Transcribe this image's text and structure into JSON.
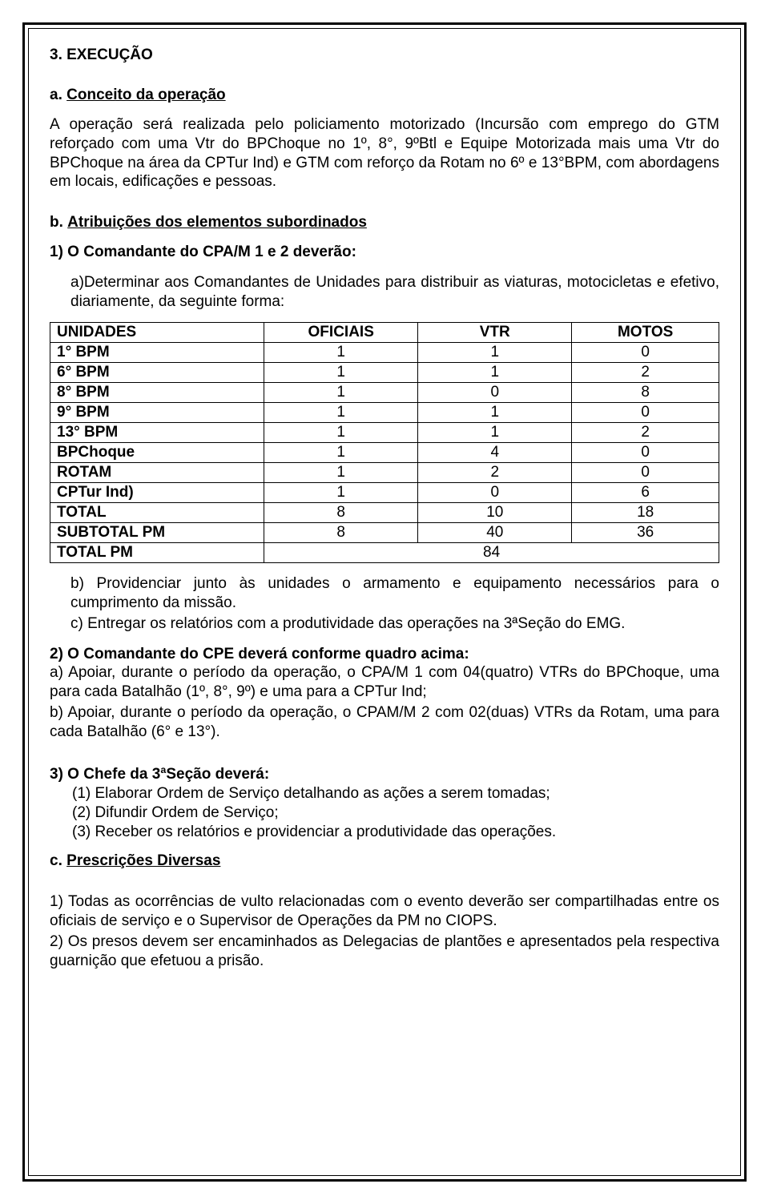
{
  "colors": {
    "text": "#000000",
    "background": "#ffffff",
    "border": "#000000"
  },
  "typography": {
    "body_fontsize_pt": 14,
    "line_height": 1.25,
    "font_family": "Arial"
  },
  "heading": {
    "number": "3. EXECUÇÃO"
  },
  "a": {
    "prefix": "a.",
    "title": "Conceito da operação",
    "body": "A operação será realizada pelo policiamento motorizado (Incursão com emprego do GTM reforçado com uma Vtr do BPChoque no 1º, 8°, 9ºBtl e Equipe Motorizada mais uma Vtr do BPChoque na área da CPTur Ind) e GTM com reforço da Rotam no 6º e 13°BPM, com abordagens em locais, edificações e pessoas."
  },
  "b": {
    "prefix": "b.",
    "title": "Atribuições dos elementos subordinados",
    "item1_title": "1) O Comandante do CPA/M 1 e 2 deverão:",
    "item1_a": "a)Determinar aos Comandantes de Unidades para distribuir as viaturas, motocicletas e efetivo, diariamente, da seguinte forma:",
    "table": {
      "type": "table",
      "columns": [
        "UNIDADES",
        "OFICIAIS",
        "VTR",
        "MOTOS"
      ],
      "rows": [
        [
          "1° BPM",
          "1",
          "1",
          "0"
        ],
        [
          "6° BPM",
          "1",
          "1",
          "2"
        ],
        [
          "8° BPM",
          "1",
          "0",
          "8"
        ],
        [
          "9° BPM",
          "1",
          "1",
          "0"
        ],
        [
          "13° BPM",
          "1",
          "1",
          "2"
        ],
        [
          "BPChoque",
          "1",
          "4",
          "0"
        ],
        [
          "ROTAM",
          "1",
          "2",
          "0"
        ],
        [
          "CPTur Ind)",
          "1",
          "0",
          "6"
        ],
        [
          "TOTAL",
          "8",
          "10",
          "18"
        ],
        [
          "SUBTOTAL PM",
          "8",
          "40",
          "36"
        ]
      ],
      "total_row": {
        "label": "TOTAL PM",
        "value": "84"
      },
      "border_color": "#000000",
      "cell_fontsize": 19
    },
    "item1_b": "b) Providenciar junto às unidades o armamento e equipamento necessários para o cumprimento da missão.",
    "item1_c": "c) Entregar os relatórios com a produtividade das operações na 3ªSeção do EMG.",
    "item2_title": "2) O Comandante do CPE deverá conforme quadro acima:",
    "item2_a": "a) Apoiar, durante o período da operação, o CPA/M 1 com 04(quatro) VTRs do BPChoque, uma para cada Batalhão (1º, 8°, 9º) e uma para a CPTur Ind;",
    "item2_b": "b) Apoiar, durante o período da operação, o CPAM/M 2 com 02(duas) VTRs da Rotam, uma para cada Batalhão (6° e 13°).",
    "item3_title": "3) O Chefe da 3ªSeção deverá:",
    "item3_1": "(1) Elaborar Ordem de Serviço detalhando as ações a serem tomadas;",
    "item3_2": "(2) Difundir Ordem de Serviço;",
    "item3_3": "(3) Receber os relatórios e providenciar a produtividade das operações."
  },
  "c": {
    "prefix": "c.",
    "title": "Prescrições Diversas",
    "item1": "1) Todas as ocorrências de vulto relacionadas com o evento deverão ser compartilhadas entre os oficiais de serviço e o Supervisor de Operações da PM no CIOPS.",
    "item2": "2) Os presos devem ser encaminhados as Delegacias de plantões e apresentados pela respectiva guarnição que efetuou a prisão."
  }
}
